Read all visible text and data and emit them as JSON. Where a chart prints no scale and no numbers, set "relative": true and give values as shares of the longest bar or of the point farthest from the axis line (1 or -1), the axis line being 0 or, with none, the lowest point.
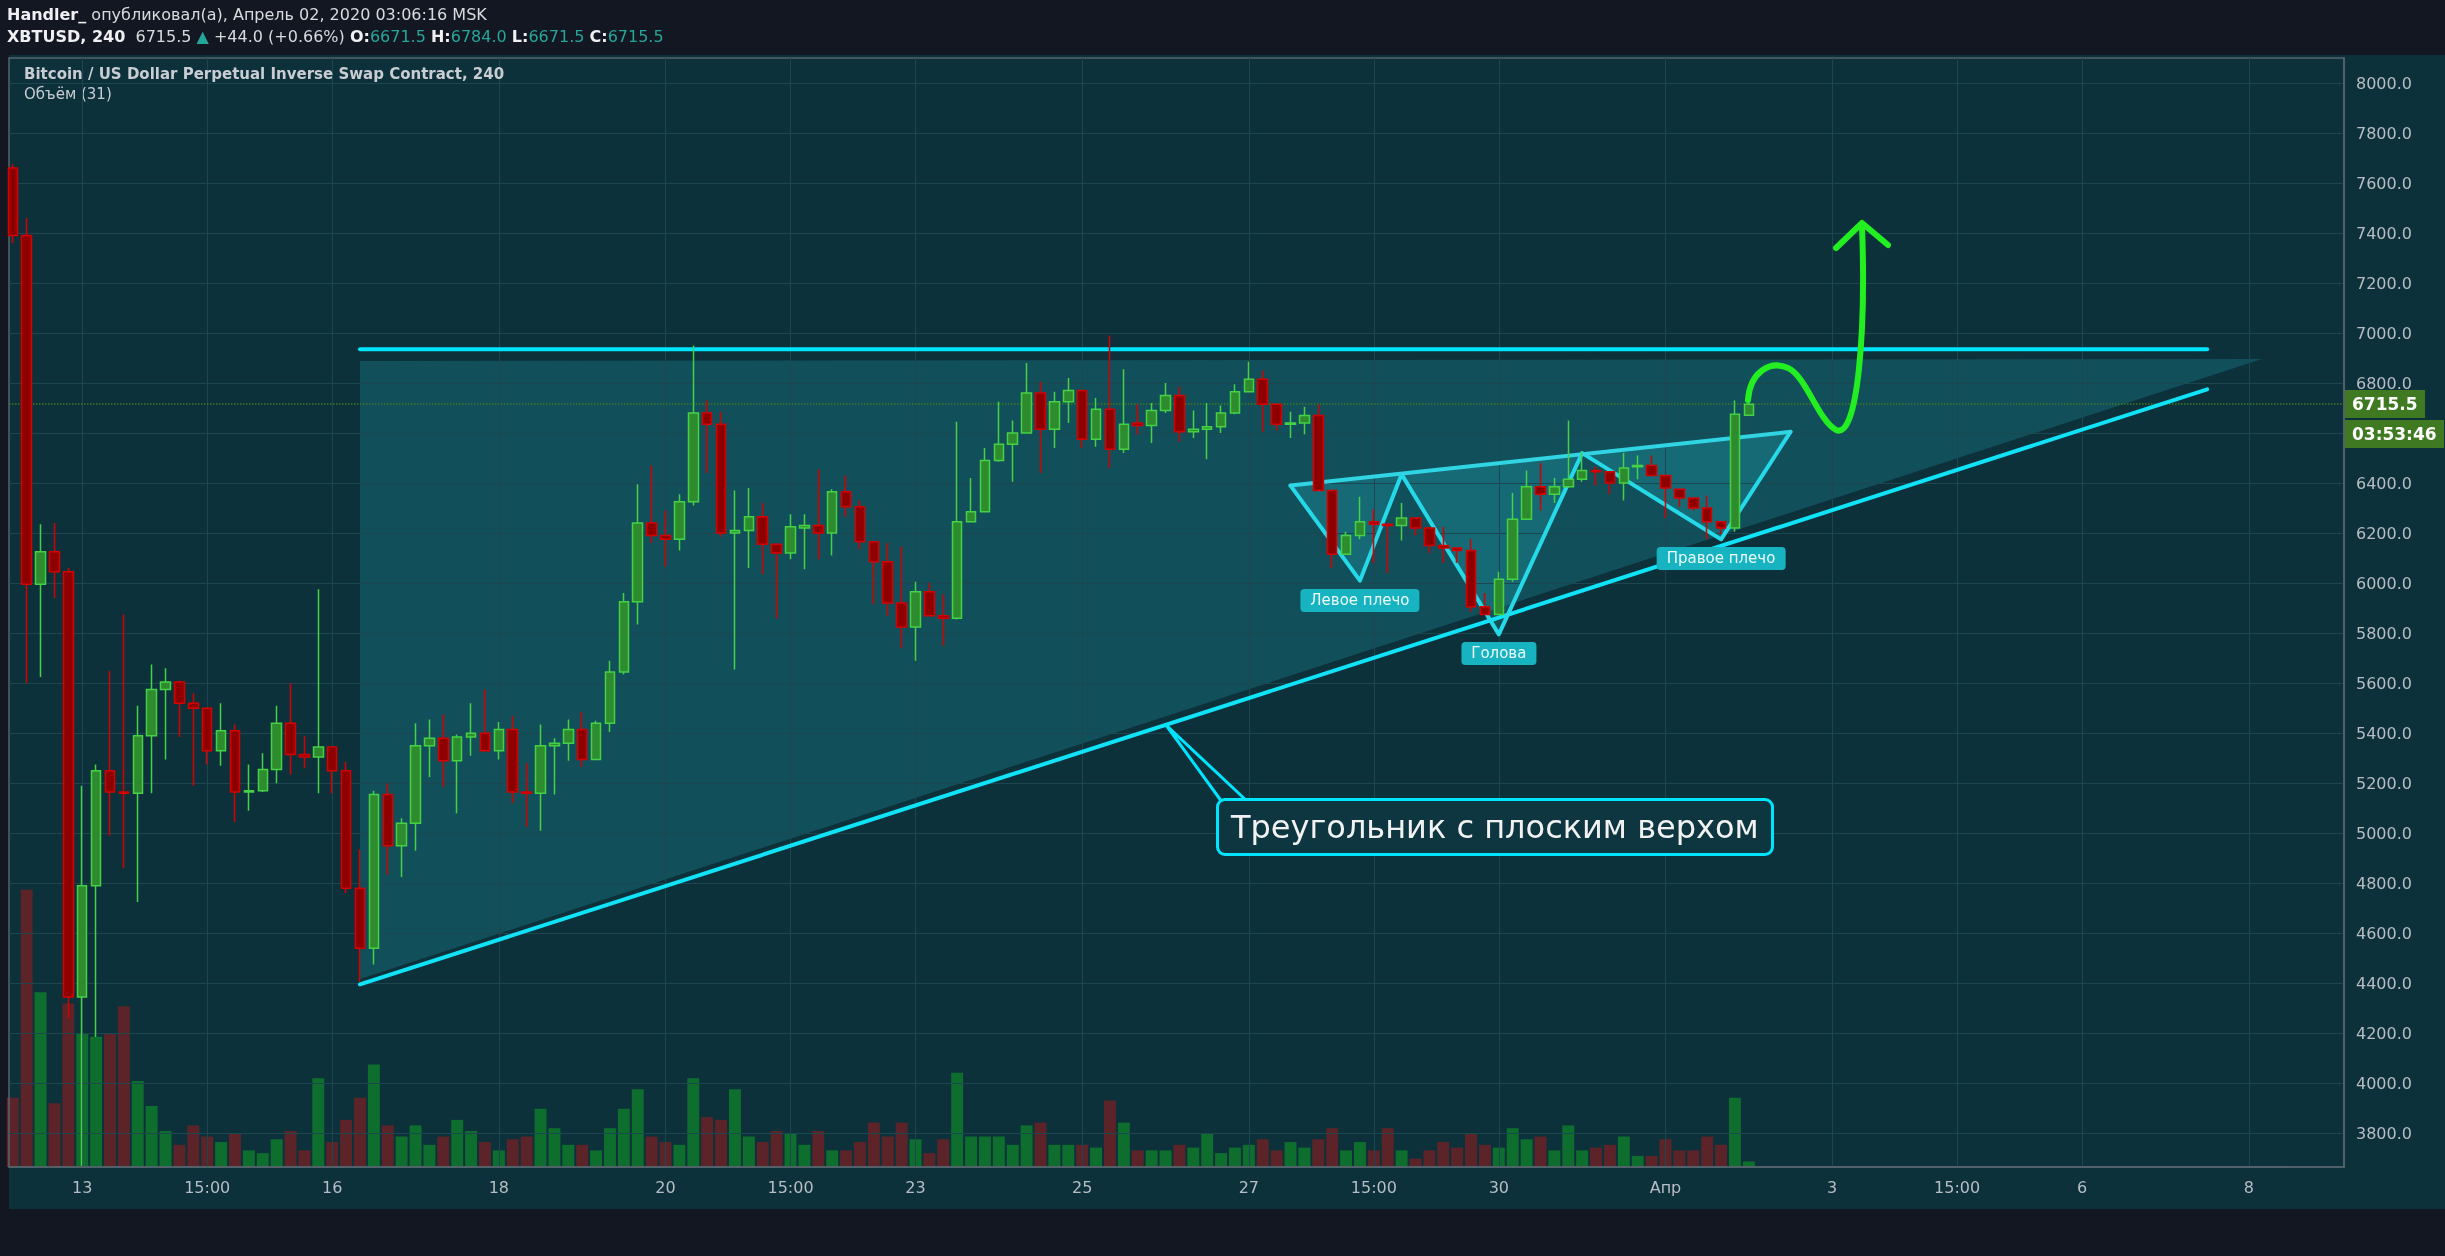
{
  "chart_data": [
    {
      "type": "candlestick",
      "title": "Bitcoin / US Dollar Perpetual Inverse Swap Contract, 240",
      "x": [
        "2020-03-12T07:00",
        "2020-03-12T11:00",
        "2020-03-12T15:00",
        "2020-03-12T19:00",
        "2020-03-12T23:00",
        "2020-03-13T03:00",
        "2020-03-13T07:00",
        "2020-03-13T11:00",
        "2020-03-13T15:00",
        "2020-03-13T19:00",
        "2020-03-13T23:00",
        "2020-03-14T03:00",
        "2020-03-14T07:00",
        "2020-03-14T11:00",
        "2020-03-14T15:00",
        "2020-03-14T19:00",
        "2020-03-14T23:00",
        "2020-03-15T03:00",
        "2020-03-15T07:00",
        "2020-03-15T11:00",
        "2020-03-15T15:00",
        "2020-03-15T19:00",
        "2020-03-15T23:00",
        "2020-03-16T03:00",
        "2020-03-16T07:00",
        "2020-03-16T11:00",
        "2020-03-16T15:00",
        "2020-03-16T19:00",
        "2020-03-16T23:00",
        "2020-03-17T03:00",
        "2020-03-17T07:00",
        "2020-03-17T11:00",
        "2020-03-17T15:00",
        "2020-03-17T19:00",
        "2020-03-17T23:00",
        "2020-03-18T03:00",
        "2020-03-18T07:00",
        "2020-03-18T11:00",
        "2020-03-18T15:00",
        "2020-03-18T19:00",
        "2020-03-18T23:00",
        "2020-03-19T03:00",
        "2020-03-19T07:00",
        "2020-03-19T11:00",
        "2020-03-19T15:00",
        "2020-03-19T19:00",
        "2020-03-19T23:00",
        "2020-03-20T03:00",
        "2020-03-20T07:00",
        "2020-03-20T11:00",
        "2020-03-20T15:00",
        "2020-03-20T19:00",
        "2020-03-20T23:00",
        "2020-03-21T03:00",
        "2020-03-21T07:00",
        "2020-03-21T11:00",
        "2020-03-21T15:00",
        "2020-03-21T19:00",
        "2020-03-21T23:00",
        "2020-03-22T03:00",
        "2020-03-22T07:00",
        "2020-03-22T11:00",
        "2020-03-22T15:00",
        "2020-03-22T19:00",
        "2020-03-22T23:00",
        "2020-03-23T03:00",
        "2020-03-23T07:00",
        "2020-03-23T11:00",
        "2020-03-23T15:00",
        "2020-03-23T19:00",
        "2020-03-23T23:00",
        "2020-03-24T03:00",
        "2020-03-24T07:00",
        "2020-03-24T11:00",
        "2020-03-24T15:00",
        "2020-03-24T19:00",
        "2020-03-24T23:00",
        "2020-03-25T03:00",
        "2020-03-25T07:00",
        "2020-03-25T11:00",
        "2020-03-25T15:00",
        "2020-03-25T19:00",
        "2020-03-25T23:00",
        "2020-03-26T03:00",
        "2020-03-26T07:00",
        "2020-03-26T11:00",
        "2020-03-26T15:00",
        "2020-03-26T19:00",
        "2020-03-26T23:00",
        "2020-03-27T03:00",
        "2020-03-27T07:00",
        "2020-03-27T11:00",
        "2020-03-27T15:00",
        "2020-03-27T19:00",
        "2020-03-27T23:00",
        "2020-03-28T03:00",
        "2020-03-28T07:00",
        "2020-03-28T11:00",
        "2020-03-28T15:00",
        "2020-03-28T19:00",
        "2020-03-28T23:00",
        "2020-03-29T03:00",
        "2020-03-29T07:00",
        "2020-03-29T11:00",
        "2020-03-29T15:00",
        "2020-03-29T19:00",
        "2020-03-29T23:00",
        "2020-03-30T03:00",
        "2020-03-30T07:00",
        "2020-03-30T11:00",
        "2020-03-30T15:00",
        "2020-03-30T19:00",
        "2020-03-30T23:00",
        "2020-03-31T03:00",
        "2020-03-31T07:00",
        "2020-03-31T11:00",
        "2020-03-31T15:00",
        "2020-03-31T19:00",
        "2020-03-31T23:00",
        "2020-04-01T03:00",
        "2020-04-01T07:00",
        "2020-04-01T11:00",
        "2020-04-01T15:00",
        "2020-04-01T19:00",
        "2020-04-01T23:00",
        "2020-04-02T03:00"
      ],
      "ohlc": [
        [
          7660,
          7675,
          7360,
          7390
        ],
        [
          7390,
          7460,
          5600,
          5995
        ],
        [
          5995,
          6235,
          5625,
          6125
        ],
        [
          6125,
          6240,
          5940,
          6045
        ],
        [
          6045,
          6060,
          4260,
          4345
        ],
        [
          4345,
          5190,
          3670,
          4790
        ],
        [
          4790,
          5275,
          4185,
          5250
        ],
        [
          5250,
          5650,
          4990,
          5165
        ],
        [
          5165,
          5875,
          4860,
          5160
        ],
        [
          5160,
          5510,
          4725,
          5390
        ],
        [
          5390,
          5675,
          5160,
          5575
        ],
        [
          5575,
          5660,
          5295,
          5605
        ],
        [
          5605,
          5610,
          5385,
          5520
        ],
        [
          5520,
          5560,
          5190,
          5500
        ],
        [
          5500,
          5500,
          5275,
          5330
        ],
        [
          5330,
          5520,
          5270,
          5410
        ],
        [
          5410,
          5435,
          5045,
          5165
        ],
        [
          5165,
          5275,
          5090,
          5170
        ],
        [
          5170,
          5320,
          5165,
          5255
        ],
        [
          5255,
          5510,
          5200,
          5440
        ],
        [
          5440,
          5600,
          5235,
          5315
        ],
        [
          5315,
          5390,
          5260,
          5305
        ],
        [
          5305,
          5975,
          5160,
          5345
        ],
        [
          5345,
          5345,
          5160,
          5250
        ],
        [
          5250,
          5285,
          4760,
          4780
        ],
        [
          4780,
          4935,
          4405,
          4540
        ],
        [
          4540,
          5170,
          4475,
          5155
        ],
        [
          5155,
          5200,
          4835,
          4950
        ],
        [
          4950,
          5060,
          4825,
          5040
        ],
        [
          5040,
          5440,
          4930,
          5350
        ],
        [
          5350,
          5455,
          5225,
          5380
        ],
        [
          5380,
          5475,
          5185,
          5290
        ],
        [
          5290,
          5395,
          5080,
          5385
        ],
        [
          5385,
          5520,
          5310,
          5400
        ],
        [
          5400,
          5575,
          5330,
          5330
        ],
        [
          5330,
          5445,
          5295,
          5415
        ],
        [
          5415,
          5470,
          5120,
          5165
        ],
        [
          5165,
          5280,
          5025,
          5160
        ],
        [
          5160,
          5435,
          5010,
          5350
        ],
        [
          5350,
          5380,
          5155,
          5360
        ],
        [
          5360,
          5455,
          5290,
          5415
        ],
        [
          5415,
          5485,
          5265,
          5295
        ],
        [
          5295,
          5450,
          5295,
          5440
        ],
        [
          5440,
          5690,
          5405,
          5645
        ],
        [
          5645,
          5960,
          5635,
          5925
        ],
        [
          5925,
          6395,
          5835,
          6240
        ],
        [
          6240,
          6470,
          6160,
          6190
        ],
        [
          6190,
          6290,
          6065,
          6175
        ],
        [
          6175,
          6355,
          6130,
          6325
        ],
        [
          6325,
          6950,
          6310,
          6680
        ],
        [
          6680,
          6730,
          6440,
          6635
        ],
        [
          6635,
          6685,
          6185,
          6200
        ],
        [
          6200,
          6370,
          5655,
          6210
        ],
        [
          6210,
          6380,
          6060,
          6265
        ],
        [
          6265,
          6320,
          6035,
          6155
        ],
        [
          6155,
          6155,
          5860,
          6120
        ],
        [
          6120,
          6275,
          6095,
          6225
        ],
        [
          6220,
          6275,
          6055,
          6230
        ],
        [
          6230,
          6455,
          6095,
          6200
        ],
        [
          6200,
          6375,
          6110,
          6365
        ],
        [
          6365,
          6430,
          6265,
          6305
        ],
        [
          6305,
          6330,
          6135,
          6165
        ],
        [
          6165,
          6165,
          5915,
          6085
        ],
        [
          6085,
          6160,
          5870,
          5920
        ],
        [
          5920,
          6145,
          5740,
          5825
        ],
        [
          5825,
          6005,
          5690,
          5965
        ],
        [
          5965,
          6000,
          5870,
          5870
        ],
        [
          5870,
          5955,
          5750,
          5860
        ],
        [
          5860,
          6645,
          5855,
          6245
        ],
        [
          6245,
          6420,
          6245,
          6285
        ],
        [
          6285,
          6540,
          6285,
          6490
        ],
        [
          6490,
          6725,
          6485,
          6555
        ],
        [
          6555,
          6650,
          6405,
          6600
        ],
        [
          6600,
          6880,
          6600,
          6760
        ],
        [
          6760,
          6805,
          6440,
          6615
        ],
        [
          6615,
          6765,
          6540,
          6725
        ],
        [
          6725,
          6820,
          6640,
          6770
        ],
        [
          6770,
          6770,
          6540,
          6575
        ],
        [
          6575,
          6740,
          6545,
          6695
        ],
        [
          6695,
          6990,
          6460,
          6535
        ],
        [
          6535,
          6855,
          6520,
          6635
        ],
        [
          6640,
          6715,
          6595,
          6630
        ],
        [
          6630,
          6720,
          6560,
          6690
        ],
        [
          6690,
          6800,
          6680,
          6750
        ],
        [
          6750,
          6785,
          6565,
          6605
        ],
        [
          6605,
          6690,
          6580,
          6615
        ],
        [
          6615,
          6720,
          6495,
          6625
        ],
        [
          6625,
          6710,
          6600,
          6680
        ],
        [
          6680,
          6795,
          6675,
          6765
        ],
        [
          6765,
          6885,
          6765,
          6815
        ],
        [
          6815,
          6850,
          6605,
          6715
        ],
        [
          6715,
          6715,
          6610,
          6635
        ],
        [
          6635,
          6685,
          6580,
          6640
        ],
        [
          6640,
          6705,
          6595,
          6670
        ],
        [
          6670,
          6715,
          6370,
          6370
        ],
        [
          6370,
          6370,
          6060,
          6115
        ],
        [
          6115,
          6205,
          6115,
          6190
        ],
        [
          6190,
          6345,
          6175,
          6245
        ],
        [
          6245,
          6295,
          6080,
          6235
        ],
        [
          6235,
          6235,
          6040,
          6230
        ],
        [
          6230,
          6320,
          6170,
          6260
        ],
        [
          6260,
          6260,
          6190,
          6220
        ],
        [
          6220,
          6220,
          6120,
          6150
        ],
        [
          6150,
          6225,
          6080,
          6140
        ],
        [
          6140,
          6140,
          6080,
          6130
        ],
        [
          6130,
          6175,
          5885,
          5905
        ],
        [
          5905,
          5960,
          5875,
          5875
        ],
        [
          5875,
          6045,
          5875,
          6015
        ],
        [
          6015,
          6360,
          6005,
          6255
        ],
        [
          6255,
          6450,
          6255,
          6385
        ],
        [
          6385,
          6480,
          6290,
          6355
        ],
        [
          6355,
          6420,
          6320,
          6385
        ],
        [
          6385,
          6650,
          6380,
          6415
        ],
        [
          6415,
          6525,
          6405,
          6450
        ],
        [
          6450,
          6465,
          6390,
          6445
        ],
        [
          6445,
          6445,
          6355,
          6400
        ],
        [
          6400,
          6520,
          6330,
          6460
        ],
        [
          6465,
          6510,
          6415,
          6470
        ],
        [
          6470,
          6510,
          6430,
          6430
        ],
        [
          6430,
          6430,
          6260,
          6380
        ],
        [
          6375,
          6375,
          6305,
          6340
        ],
        [
          6340,
          6340,
          6290,
          6300
        ],
        [
          6300,
          6350,
          6175,
          6245
        ],
        [
          6245,
          6245,
          6195,
          6220
        ],
        [
          6220,
          6730,
          6205,
          6675
        ],
        [
          6671.5,
          6784.0,
          6671.5,
          6715.5
        ]
      ],
      "colors": [
        "#8e0000",
        "#8e0000",
        "#2e8b2e",
        "#8e0000",
        "#8e0000",
        "#2e8b2e",
        "#2e8b2e",
        "#8e0000",
        "#8e0000",
        "#2e8b2e",
        "#2e8b2e",
        "#2e8b2e",
        "#8e0000",
        "#8e0000",
        "#8e0000",
        "#2e8b2e",
        "#8e0000",
        "#2e8b2e",
        "#2e8b2e",
        "#2e8b2e",
        "#8e0000",
        "#8e0000",
        "#2e8b2e",
        "#8e0000",
        "#8e0000",
        "#8e0000",
        "#2e8b2e",
        "#8e0000",
        "#2e8b2e",
        "#2e8b2e",
        "#2e8b2e",
        "#8e0000",
        "#2e8b2e",
        "#2e8b2e",
        "#8e0000",
        "#2e8b2e",
        "#8e0000",
        "#8e0000",
        "#2e8b2e",
        "#2e8b2e",
        "#2e8b2e",
        "#8e0000",
        "#2e8b2e",
        "#2e8b2e",
        "#2e8b2e",
        "#2e8b2e",
        "#8e0000",
        "#8e0000",
        "#2e8b2e",
        "#2e8b2e",
        "#8e0000",
        "#8e0000",
        "#2e8b2e",
        "#2e8b2e",
        "#8e0000",
        "#8e0000",
        "#2e8b2e",
        "#2e8b2e",
        "#8e0000",
        "#2e8b2e",
        "#8e0000",
        "#8e0000",
        "#8e0000",
        "#8e0000",
        "#8e0000",
        "#2e8b2e",
        "#8e0000",
        "#8e0000",
        "#2e8b2e",
        "#2e8b2e",
        "#2e8b2e",
        "#2e8b2e",
        "#2e8b2e",
        "#2e8b2e",
        "#8e0000",
        "#2e8b2e",
        "#2e8b2e",
        "#8e0000",
        "#2e8b2e",
        "#8e0000",
        "#2e8b2e",
        "#8e0000",
        "#2e8b2e",
        "#2e8b2e",
        "#8e0000",
        "#2e8b2e",
        "#2e8b2e",
        "#2e8b2e",
        "#2e8b2e",
        "#2e8b2e",
        "#8e0000",
        "#8e0000",
        "#2e8b2e",
        "#2e8b2e",
        "#8e0000",
        "#8e0000",
        "#2e8b2e",
        "#2e8b2e",
        "#8e0000",
        "#8e0000",
        "#2e8b2e",
        "#8e0000",
        "#8e0000",
        "#8e0000",
        "#8e0000",
        "#8e0000",
        "#8e0000",
        "#2e8b2e",
        "#2e8b2e",
        "#2e8b2e",
        "#8e0000",
        "#2e8b2e",
        "#2e8b2e",
        "#2e8b2e",
        "#8e0000",
        "#8e0000",
        "#2e8b2e",
        "#2e8b2e",
        "#8e0000",
        "#8e0000",
        "#8e0000",
        "#8e0000",
        "#8e0000",
        "#8e0000",
        "#2e8b2e",
        "#2e8b2e"
      ],
      "series": [
        {
          "type": "line",
          "color": "#00e5ff",
          "x": [
            "2020-03-16T11:00",
            "2020-04-07T15:00"
          ],
          "values": [
            6935,
            6935
          ]
        },
        {
          "type": "line",
          "color": "#10e2f8",
          "x": [
            "2020-03-16T11:00",
            "2020-04-07T15:00"
          ],
          "values": [
            4395,
            6775
          ]
        },
        {
          "type": "line",
          "color": "#26d9e8",
          "x": [
            "2020-03-27T15:00",
            "2020-03-28T11:00",
            "2020-03-28T23:00",
            "2020-03-30T03:00",
            "2020-03-31T03:00",
            "2020-04-01T19:00",
            "2020-04-02T15:00"
          ],
          "values": [
            6390,
            6010,
            6435,
            5795,
            6520,
            6175,
            6605
          ]
        },
        {
          "type": "line",
          "color": "#30d4e2",
          "x": [
            "2020-03-27T15:00",
            "2020-04-02T15:00"
          ],
          "values": [
            6390,
            6605
          ]
        }
      ],
      "ref_lines": [
        {
          "axis": "y",
          "value": 6715.5,
          "label": "6715.5",
          "color": "#3f7a22",
          "line_style": "dotted"
        }
      ],
      "annotations": [
        "Handler_ опубликовал(а), Апрель 02, 2020 03:06:16 MSK",
        "XBTUSD, 240",
        "6715.5 ▲ +44.0 (+0.66%) O:6671.5 H:6784.0 L:6671.5 C:6715.5",
        "03:53:46",
        "Треугольник с плоским верхом",
        {
          "text": "Левое плечо",
          "x": "2020-03-28T11:00",
          "y": 6010
        },
        {
          "text": "Голова",
          "x": "2020-03-30T03:00",
          "y": 5795
        },
        {
          "text": "Правое плечо",
          "x": "2020-04-01T19:00",
          "y": 6175
        }
      ],
      "xlim": [
        "2020-03-12T05:55",
        "2020-04-09T06:25"
      ],
      "xticks": [
        {
          "value": "2020-03-13T03:00",
          "label": "13"
        },
        {
          "value": "2020-03-14T15:00",
          "label": "15:00"
        },
        {
          "value": "2020-03-16T03:00",
          "label": "16"
        },
        {
          "value": "2020-03-18T03:00",
          "label": "18"
        },
        {
          "value": "2020-03-20T03:00",
          "label": "20"
        },
        {
          "value": "2020-03-21T15:00",
          "label": "15:00"
        },
        {
          "value": "2020-03-23T03:00",
          "label": "23"
        },
        {
          "value": "2020-03-25T03:00",
          "label": "25"
        },
        {
          "value": "2020-03-27T03:00",
          "label": "27"
        },
        {
          "value": "2020-03-28T15:00",
          "label": "15:00"
        },
        {
          "value": "2020-03-30T03:00",
          "label": "30"
        },
        {
          "value": "2020-04-01T03:00",
          "label": "Апр"
        },
        {
          "value": "2020-04-03T03:00",
          "label": "3"
        },
        {
          "value": "2020-04-04T15:00",
          "label": "15:00"
        },
        {
          "value": "2020-04-06T03:00",
          "label": "6"
        },
        {
          "value": "2020-04-08T03:00",
          "label": "8"
        }
      ],
      "ylim": [
        3665,
        8100
      ],
      "yticks": [
        {
          "value": 3800,
          "label": "3800.0"
        },
        {
          "value": 4000,
          "label": "4000.0"
        },
        {
          "value": 4200,
          "label": "4200.0"
        },
        {
          "value": 4400,
          "label": "4400.0"
        },
        {
          "value": 4600,
          "label": "4600.0"
        },
        {
          "value": 4800,
          "label": "4800.0"
        },
        {
          "value": 5000,
          "label": "5000.0"
        },
        {
          "value": 5200,
          "label": "5200.0"
        },
        {
          "value": 5400,
          "label": "5400.0"
        },
        {
          "value": 5600,
          "label": "5600.0"
        },
        {
          "value": 5800,
          "label": "5800.0"
        },
        {
          "value": 6000,
          "label": "6000.0"
        },
        {
          "value": 6200,
          "label": "6200.0"
        },
        {
          "value": 6400,
          "label": "6400.0"
        },
        {
          "value": 6600,
          "label": null
        },
        {
          "value": 6800,
          "label": "6800.0"
        },
        {
          "value": 7000,
          "label": "7000.0"
        },
        {
          "value": 7200,
          "label": "7200.0"
        },
        {
          "value": 7400,
          "label": "7400.0"
        },
        {
          "value": 7600,
          "label": "7600.0"
        },
        {
          "value": 7800,
          "label": "7800.0"
        },
        {
          "value": 8000,
          "label": "8000.0"
        }
      ],
      "grid": true
    },
    {
      "type": "bar",
      "relative": true,
      "title": "Объём (31)",
      "x": [
        "2020-03-12T07:00",
        "2020-03-12T11:00",
        "2020-03-12T15:00",
        "2020-03-12T19:00",
        "2020-03-12T23:00",
        "2020-03-13T03:00",
        "2020-03-13T07:00",
        "2020-03-13T11:00",
        "2020-03-13T15:00",
        "2020-03-13T19:00",
        "2020-03-13T23:00",
        "2020-03-14T03:00",
        "2020-03-14T07:00",
        "2020-03-14T11:00",
        "2020-03-14T15:00",
        "2020-03-14T19:00",
        "2020-03-14T23:00",
        "2020-03-15T03:00",
        "2020-03-15T07:00",
        "2020-03-15T11:00",
        "2020-03-15T15:00",
        "2020-03-15T19:00",
        "2020-03-15T23:00",
        "2020-03-16T03:00",
        "2020-03-16T07:00",
        "2020-03-16T11:00",
        "2020-03-16T15:00",
        "2020-03-16T19:00",
        "2020-03-16T23:00",
        "2020-03-17T03:00",
        "2020-03-17T07:00",
        "2020-03-17T11:00",
        "2020-03-17T15:00",
        "2020-03-17T19:00",
        "2020-03-17T23:00",
        "2020-03-18T03:00",
        "2020-03-18T07:00",
        "2020-03-18T11:00",
        "2020-03-18T15:00",
        "2020-03-18T19:00",
        "2020-03-18T23:00",
        "2020-03-19T03:00",
        "2020-03-19T07:00",
        "2020-03-19T11:00",
        "2020-03-19T15:00",
        "2020-03-19T19:00",
        "2020-03-19T23:00",
        "2020-03-20T03:00",
        "2020-03-20T07:00",
        "2020-03-20T11:00",
        "2020-03-20T15:00",
        "2020-03-20T19:00",
        "2020-03-20T23:00",
        "2020-03-21T03:00",
        "2020-03-21T07:00",
        "2020-03-21T11:00",
        "2020-03-21T15:00",
        "2020-03-21T19:00",
        "2020-03-21T23:00",
        "2020-03-22T03:00",
        "2020-03-22T07:00",
        "2020-03-22T11:00",
        "2020-03-22T15:00",
        "2020-03-22T19:00",
        "2020-03-22T23:00",
        "2020-03-23T03:00",
        "2020-03-23T07:00",
        "2020-03-23T11:00",
        "2020-03-23T15:00",
        "2020-03-23T19:00",
        "2020-03-23T23:00",
        "2020-03-24T03:00",
        "2020-03-24T07:00",
        "2020-03-24T11:00",
        "2020-03-24T15:00",
        "2020-03-24T19:00",
        "2020-03-24T23:00",
        "2020-03-25T03:00",
        "2020-03-25T07:00",
        "2020-03-25T11:00",
        "2020-03-25T15:00",
        "2020-03-25T19:00",
        "2020-03-25T23:00",
        "2020-03-26T03:00",
        "2020-03-26T07:00",
        "2020-03-26T11:00",
        "2020-03-26T15:00",
        "2020-03-26T19:00",
        "2020-03-26T23:00",
        "2020-03-27T03:00",
        "2020-03-27T07:00",
        "2020-03-27T11:00",
        "2020-03-27T15:00",
        "2020-03-27T19:00",
        "2020-03-27T23:00",
        "2020-03-28T03:00",
        "2020-03-28T07:00",
        "2020-03-28T11:00",
        "2020-03-28T15:00",
        "2020-03-28T19:00",
        "2020-03-28T23:00",
        "2020-03-29T03:00",
        "2020-03-29T07:00",
        "2020-03-29T11:00",
        "2020-03-29T15:00",
        "2020-03-29T19:00",
        "2020-03-29T23:00",
        "2020-03-30T03:00",
        "2020-03-30T07:00",
        "2020-03-30T11:00",
        "2020-03-30T15:00",
        "2020-03-30T19:00",
        "2020-03-30T23:00",
        "2020-03-31T03:00",
        "2020-03-31T07:00",
        "2020-03-31T11:00",
        "2020-03-31T15:00",
        "2020-03-31T19:00",
        "2020-03-31T23:00",
        "2020-04-01T03:00",
        "2020-04-01T07:00",
        "2020-04-01T11:00",
        "2020-04-01T15:00",
        "2020-04-01T19:00",
        "2020-04-01T23:00",
        "2020-04-02T03:00"
      ],
      "values": [
        0.25,
        1.0,
        0.63,
        0.23,
        0.59,
        0.48,
        0.47,
        0.48,
        0.58,
        0.31,
        0.22,
        0.13,
        0.08,
        0.15,
        0.11,
        0.09,
        0.12,
        0.06,
        0.05,
        0.1,
        0.13,
        0.06,
        0.32,
        0.09,
        0.17,
        0.25,
        0.37,
        0.15,
        0.11,
        0.15,
        0.08,
        0.11,
        0.17,
        0.13,
        0.09,
        0.06,
        0.1,
        0.11,
        0.21,
        0.14,
        0.08,
        0.08,
        0.06,
        0.14,
        0.21,
        0.28,
        0.11,
        0.09,
        0.08,
        0.32,
        0.18,
        0.17,
        0.28,
        0.11,
        0.09,
        0.13,
        0.12,
        0.08,
        0.13,
        0.06,
        0.06,
        0.09,
        0.16,
        0.11,
        0.16,
        0.1,
        0.05,
        0.1,
        0.34,
        0.11,
        0.11,
        0.11,
        0.08,
        0.15,
        0.16,
        0.08,
        0.08,
        0.08,
        0.07,
        0.24,
        0.16,
        0.06,
        0.06,
        0.06,
        0.08,
        0.07,
        0.12,
        0.05,
        0.07,
        0.08,
        0.1,
        0.06,
        0.09,
        0.07,
        0.1,
        0.14,
        0.06,
        0.09,
        0.06,
        0.14,
        0.06,
        0.03,
        0.06,
        0.09,
        0.07,
        0.12,
        0.08,
        0.07,
        0.14,
        0.1,
        0.11,
        0.06,
        0.15,
        0.06,
        0.07,
        0.08,
        0.11,
        0.04,
        0.04,
        0.1,
        0.06,
        0.06,
        0.11,
        0.08,
        0.25,
        0.02
      ],
      "colors": [
        "#5c2429",
        "#5c2429",
        "#0e6e2e",
        "#5c2429",
        "#5c2429",
        "#0e6e2e",
        "#0e6e2e",
        "#5c2429",
        "#5c2429",
        "#0e6e2e",
        "#0e6e2e",
        "#0e6e2e",
        "#5c2429",
        "#5c2429",
        "#5c2429",
        "#0e6e2e",
        "#5c2429",
        "#0e6e2e",
        "#0e6e2e",
        "#0e6e2e",
        "#5c2429",
        "#5c2429",
        "#0e6e2e",
        "#5c2429",
        "#5c2429",
        "#5c2429",
        "#0e6e2e",
        "#5c2429",
        "#0e6e2e",
        "#0e6e2e",
        "#0e6e2e",
        "#5c2429",
        "#0e6e2e",
        "#0e6e2e",
        "#5c2429",
        "#0e6e2e",
        "#5c2429",
        "#5c2429",
        "#0e6e2e",
        "#0e6e2e",
        "#0e6e2e",
        "#5c2429",
        "#0e6e2e",
        "#0e6e2e",
        "#0e6e2e",
        "#0e6e2e",
        "#5c2429",
        "#5c2429",
        "#0e6e2e",
        "#0e6e2e",
        "#5c2429",
        "#5c2429",
        "#0e6e2e",
        "#0e6e2e",
        "#5c2429",
        "#5c2429",
        "#0e6e2e",
        "#0e6e2e",
        "#5c2429",
        "#0e6e2e",
        "#5c2429",
        "#5c2429",
        "#5c2429",
        "#5c2429",
        "#5c2429",
        "#0e6e2e",
        "#5c2429",
        "#5c2429",
        "#0e6e2e",
        "#0e6e2e",
        "#0e6e2e",
        "#0e6e2e",
        "#0e6e2e",
        "#0e6e2e",
        "#5c2429",
        "#0e6e2e",
        "#0e6e2e",
        "#5c2429",
        "#0e6e2e",
        "#5c2429",
        "#0e6e2e",
        "#5c2429",
        "#0e6e2e",
        "#0e6e2e",
        "#5c2429",
        "#0e6e2e",
        "#0e6e2e",
        "#0e6e2e",
        "#0e6e2e",
        "#0e6e2e",
        "#5c2429",
        "#5c2429",
        "#0e6e2e",
        "#0e6e2e",
        "#5c2429",
        "#5c2429",
        "#0e6e2e",
        "#0e6e2e",
        "#5c2429",
        "#5c2429",
        "#0e6e2e",
        "#5c2429",
        "#5c2429",
        "#5c2429",
        "#5c2429",
        "#5c2429",
        "#5c2429",
        "#0e6e2e",
        "#0e6e2e",
        "#0e6e2e",
        "#5c2429",
        "#0e6e2e",
        "#0e6e2e",
        "#0e6e2e",
        "#5c2429",
        "#5c2429",
        "#0e6e2e",
        "#0e6e2e",
        "#5c2429",
        "#5c2429",
        "#5c2429",
        "#5c2429",
        "#5c2429",
        "#5c2429",
        "#0e6e2e",
        "#0e6e2e"
      ],
      "xlim": [
        "2020-03-12T05:55",
        "2020-04-09T06:25"
      ],
      "tick_labels": false
    }
  ]
}
